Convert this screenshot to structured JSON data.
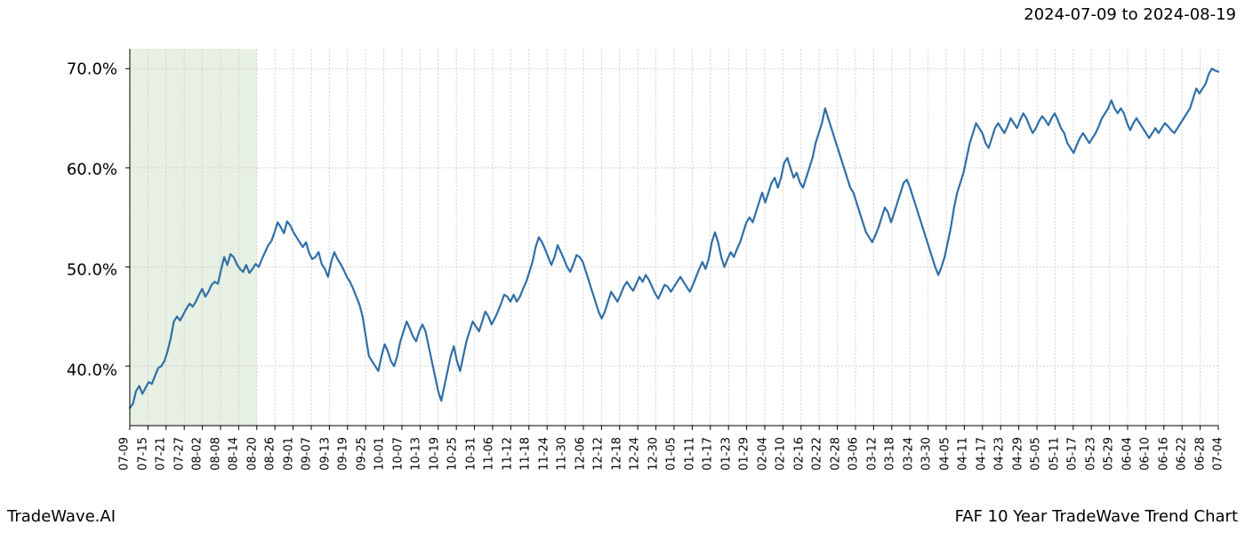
{
  "header": {
    "date_range": "2024-07-09 to 2024-08-19"
  },
  "footer": {
    "brand": "TradeWave.AI",
    "caption": "FAF 10 Year TradeWave Trend Chart"
  },
  "chart": {
    "type": "line",
    "background_color": "#ffffff",
    "grid_color": "#d0d0d0",
    "grid_dash": "2,2",
    "spine_color": "#000000",
    "line_color": "#2f6fa7",
    "line_width": 2.2,
    "highlight_band": {
      "x_start": "07-09",
      "x_end": "08-19",
      "fill": "#b8d4b0",
      "fill_opacity": 0.35
    },
    "y_axis": {
      "ticks": [
        40.0,
        50.0,
        60.0,
        70.0
      ],
      "tick_labels": [
        "40.0%",
        "50.0%",
        "60.0%",
        "70.0%"
      ],
      "min": 34.0,
      "max": 72.0,
      "label_fontsize": 18
    },
    "x_axis": {
      "ticks": [
        "07-09",
        "07-15",
        "07-21",
        "07-27",
        "08-02",
        "08-08",
        "08-14",
        "08-20",
        "08-26",
        "09-01",
        "09-07",
        "09-13",
        "09-19",
        "09-25",
        "10-01",
        "10-07",
        "10-13",
        "10-19",
        "10-25",
        "10-31",
        "11-06",
        "11-12",
        "11-18",
        "11-24",
        "11-30",
        "12-06",
        "12-12",
        "12-18",
        "12-24",
        "12-30",
        "01-05",
        "01-11",
        "01-17",
        "01-23",
        "01-29",
        "02-04",
        "02-10",
        "02-16",
        "02-22",
        "02-28",
        "03-06",
        "03-12",
        "03-18",
        "03-24",
        "03-30",
        "04-05",
        "04-11",
        "04-17",
        "04-23",
        "04-29",
        "05-05",
        "05-11",
        "05-17",
        "05-23",
        "05-29",
        "06-04",
        "06-10",
        "06-16",
        "06-22",
        "06-28",
        "07-04"
      ],
      "label_fontsize": 13,
      "label_rotation": 90
    },
    "series": [
      {
        "name": "FAF 10yr trend",
        "values": [
          35.8,
          36.2,
          37.5,
          38.0,
          37.2,
          37.8,
          38.4,
          38.2,
          39.0,
          39.8,
          40.0,
          40.5,
          41.5,
          42.8,
          44.5,
          45.0,
          44.6,
          45.2,
          45.8,
          46.3,
          46.0,
          46.5,
          47.2,
          47.8,
          47.0,
          47.5,
          48.2,
          48.5,
          48.3,
          49.7,
          51.0,
          50.2,
          51.3,
          51.0,
          50.3,
          49.8,
          49.5,
          50.2,
          49.4,
          49.8,
          50.3,
          50.0,
          50.8,
          51.5,
          52.2,
          52.6,
          53.5,
          54.5,
          54.0,
          53.4,
          54.6,
          54.2,
          53.5,
          53.0,
          52.5,
          52.0,
          52.5,
          51.4,
          50.8,
          51.0,
          51.5,
          50.3,
          49.8,
          49.0,
          50.5,
          51.5,
          50.8,
          50.3,
          49.7,
          49.0,
          48.5,
          47.8,
          47.0,
          46.2,
          45.0,
          43.0,
          41.0,
          40.5,
          40.0,
          39.5,
          41.0,
          42.2,
          41.5,
          40.5,
          40.0,
          41.0,
          42.5,
          43.5,
          44.5,
          43.8,
          43.0,
          42.5,
          43.5,
          44.2,
          43.5,
          42.0,
          40.5,
          39.0,
          37.5,
          36.5,
          38.0,
          39.5,
          41.0,
          42.0,
          40.5,
          39.5,
          41.0,
          42.5,
          43.5,
          44.5,
          44.0,
          43.5,
          44.5,
          45.5,
          45.0,
          44.2,
          44.8,
          45.5,
          46.3,
          47.2,
          47.0,
          46.5,
          47.2,
          46.5,
          47.0,
          47.8,
          48.5,
          49.5,
          50.5,
          52.0,
          53.0,
          52.5,
          51.8,
          51.0,
          50.2,
          51.0,
          52.2,
          51.5,
          50.8,
          50.0,
          49.5,
          50.3,
          51.2,
          51.0,
          50.5,
          49.5,
          48.5,
          47.5,
          46.5,
          45.5,
          44.8,
          45.5,
          46.5,
          47.5,
          47.0,
          46.5,
          47.2,
          48.0,
          48.5,
          48.0,
          47.6,
          48.3,
          49.0,
          48.5,
          49.2,
          48.7,
          48.0,
          47.3,
          46.8,
          47.5,
          48.2,
          48.0,
          47.5,
          48.0,
          48.5,
          49.0,
          48.5,
          48.0,
          47.5,
          48.2,
          49.0,
          49.8,
          50.5,
          49.8,
          50.8,
          52.5,
          53.5,
          52.5,
          51.0,
          50.0,
          50.8,
          51.5,
          51.0,
          51.8,
          52.5,
          53.5,
          54.5,
          55.0,
          54.5,
          55.5,
          56.5,
          57.5,
          56.5,
          57.5,
          58.5,
          59.0,
          58.0,
          59.0,
          60.5,
          61.0,
          60.0,
          59.0,
          59.5,
          58.5,
          58.0,
          59.0,
          60.0,
          61.0,
          62.5,
          63.5,
          64.5,
          66.0,
          65.0,
          64.0,
          63.0,
          62.0,
          61.0,
          60.0,
          59.0,
          58.0,
          57.5,
          56.5,
          55.5,
          54.5,
          53.5,
          53.0,
          52.5,
          53.2,
          54.0,
          55.0,
          56.0,
          55.5,
          54.5,
          55.5,
          56.5,
          57.5,
          58.5,
          58.8,
          58.0,
          57.0,
          56.0,
          55.0,
          54.0,
          53.0,
          52.0,
          51.0,
          50.0,
          49.2,
          50.0,
          51.0,
          52.5,
          54.0,
          56.0,
          57.5,
          58.5,
          59.5,
          61.0,
          62.5,
          63.5,
          64.5,
          64.0,
          63.5,
          62.5,
          62.0,
          63.0,
          64.0,
          64.5,
          64.0,
          63.5,
          64.2,
          65.0,
          64.5,
          64.0,
          64.8,
          65.5,
          65.0,
          64.2,
          63.5,
          64.0,
          64.7,
          65.2,
          64.8,
          64.3,
          65.0,
          65.5,
          64.8,
          64.0,
          63.5,
          62.5,
          62.0,
          61.5,
          62.3,
          63.0,
          63.5,
          63.0,
          62.5,
          63.0,
          63.5,
          64.2,
          65.0,
          65.5,
          66.0,
          66.8,
          66.0,
          65.5,
          66.0,
          65.5,
          64.5,
          63.8,
          64.5,
          65.0,
          64.5,
          64.0,
          63.5,
          63.0,
          63.5,
          64.0,
          63.5,
          64.0,
          64.5,
          64.2,
          63.8,
          63.5,
          64.0,
          64.5,
          65.0,
          65.5,
          66.0,
          67.0,
          68.0,
          67.5,
          68.0,
          68.5,
          69.5,
          70.0,
          69.8,
          69.7
        ]
      }
    ]
  }
}
